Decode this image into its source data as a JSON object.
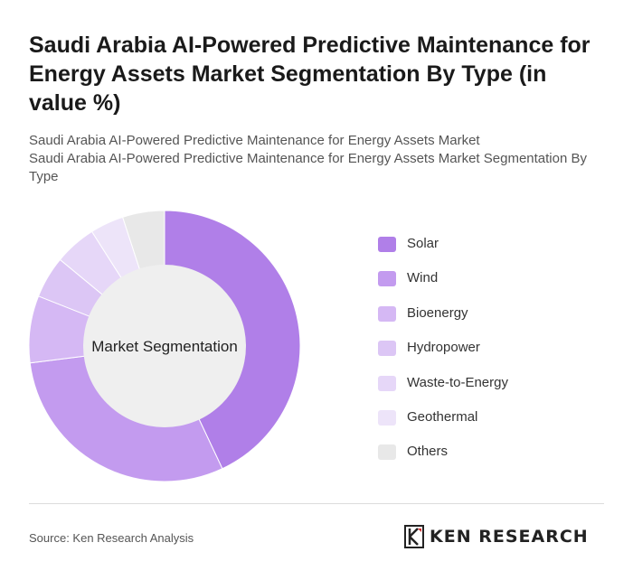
{
  "header": {
    "title": "Saudi Arabia AI-Powered Predictive Maintenance for Energy Assets Market Segmentation By Type (in value %)",
    "subtitle_line1": "Saudi Arabia AI-Powered Predictive Maintenance for Energy Assets Market",
    "subtitle_line2": "Saudi Arabia AI-Powered Predictive Maintenance for Energy Assets Market Segmentation By Type"
  },
  "chart_data": {
    "type": "pie",
    "variant": "donut",
    "center_label": "Market Segmentation",
    "categories": [
      "Solar",
      "Wind",
      "Bioenergy",
      "Hydropower",
      "Waste-to-Energy",
      "Geothermal",
      "Others"
    ],
    "values": [
      43,
      30,
      8,
      5,
      5,
      4,
      5
    ],
    "colors": [
      "#b07fe8",
      "#c39bef",
      "#d5b8f4",
      "#dcc6f5",
      "#e6d7f8",
      "#ede4f9",
      "#e8e8e8"
    ],
    "legend_position": "right"
  },
  "footer": {
    "source": "Source: Ken Research Analysis",
    "logo_text": "KEN RESEARCH"
  }
}
